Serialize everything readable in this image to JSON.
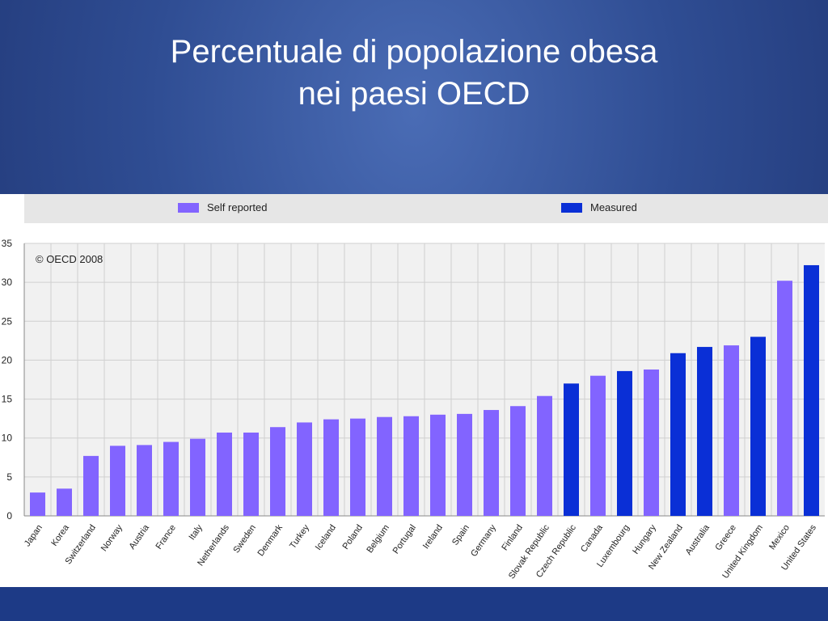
{
  "slide": {
    "title_line1": "Percentuale di popolazione obesa",
    "title_line2": "nei paesi OECD"
  },
  "chart_data": {
    "type": "bar",
    "watermark": "© OECD 2008",
    "legend": [
      {
        "label": "Self reported",
        "color": "#8264ff"
      },
      {
        "label": "Measured",
        "color": "#0a2fd6"
      }
    ],
    "ylim": [
      0,
      35
    ],
    "yticks": [
      0,
      5,
      10,
      15,
      20,
      25,
      30,
      35
    ],
    "grid": true,
    "categories": [
      "Japan",
      "Korea",
      "Switzerland",
      "Norway",
      "Austria",
      "France",
      "Italy",
      "Netherlands",
      "Sweden",
      "Denmark",
      "Turkey",
      "Iceland",
      "Poland",
      "Belgium",
      "Portugal",
      "Ireland",
      "Spain",
      "Germany",
      "Finland",
      "Slovak Republic",
      "Czech Republic",
      "Canada",
      "Luxembourg",
      "Hungary",
      "New Zealand",
      "Australia",
      "Greece",
      "United Kingdom",
      "Mexico",
      "United States"
    ],
    "values": [
      3.0,
      3.5,
      7.7,
      9.0,
      9.1,
      9.5,
      9.9,
      10.7,
      10.7,
      11.4,
      12.0,
      12.4,
      12.5,
      12.7,
      12.8,
      13.0,
      13.1,
      13.6,
      14.1,
      15.4,
      17.0,
      18.0,
      18.6,
      18.8,
      20.9,
      21.7,
      21.9,
      23.0,
      30.2,
      32.2
    ],
    "measurement": [
      "Self reported",
      "Self reported",
      "Self reported",
      "Self reported",
      "Self reported",
      "Self reported",
      "Self reported",
      "Self reported",
      "Self reported",
      "Self reported",
      "Self reported",
      "Self reported",
      "Self reported",
      "Self reported",
      "Self reported",
      "Self reported",
      "Self reported",
      "Self reported",
      "Self reported",
      "Self reported",
      "Measured",
      "Self reported",
      "Measured",
      "Self reported",
      "Measured",
      "Measured",
      "Self reported",
      "Measured",
      "Self reported",
      "Measured"
    ]
  }
}
